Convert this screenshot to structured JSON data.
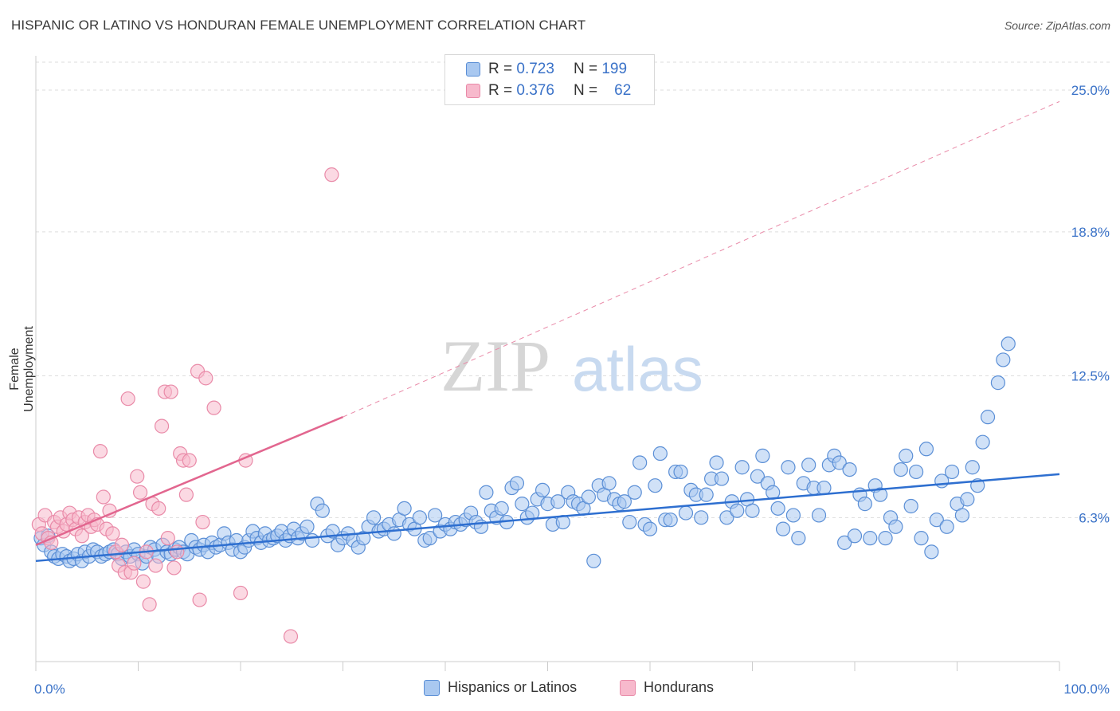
{
  "title": "HISPANIC OR LATINO VS HONDURAN FEMALE UNEMPLOYMENT CORRELATION CHART",
  "source": "Source: ZipAtlas.com",
  "watermark": {
    "zip": "ZIP",
    "atlas": "atlas"
  },
  "legend_top": [
    {
      "r_label": "R =",
      "r_value": "0.723",
      "n_label": "N =",
      "n_value": "199"
    },
    {
      "r_label": "R =",
      "r_value": "0.376",
      "n_label": "N =",
      "n_value": "62"
    }
  ],
  "colors": {
    "blue_fill": "#a9c8f0",
    "blue_stroke": "#5b8fd6",
    "blue_line": "#2e6fd0",
    "pink_fill": "#f7b9cc",
    "pink_stroke": "#e98aa8",
    "pink_line": "#e2668f",
    "grid": "#dddddd",
    "tick_label": "#3a72c8"
  },
  "chart_data": {
    "type": "scatter",
    "title": "HISPANIC OR LATINO VS HONDURAN FEMALE UNEMPLOYMENT CORRELATION CHART",
    "xlabel": "",
    "ylabel": "Female Unemployment",
    "xlim": [
      0,
      100
    ],
    "ylim": [
      0,
      26.5
    ],
    "x_tick_labels": [
      "0.0%",
      "100.0%"
    ],
    "y_ticks": [
      6.3,
      12.5,
      18.8,
      25.0
    ],
    "y_tick_labels": [
      "6.3%",
      "12.5%",
      "18.8%",
      "25.0%"
    ],
    "grid": true,
    "legend_position": "top-center",
    "series": [
      {
        "name": "Hispanics or Latinos",
        "color": "#5b8fd6",
        "trend": {
          "x": [
            0,
            100
          ],
          "y": [
            4.4,
            8.2
          ]
        },
        "points": [
          [
            0.5,
            5.4
          ],
          [
            0.8,
            5.1
          ],
          [
            1.2,
            5.5
          ],
          [
            1.5,
            4.8
          ],
          [
            1.8,
            4.6
          ],
          [
            2.2,
            4.5
          ],
          [
            2.6,
            4.7
          ],
          [
            3.0,
            4.6
          ],
          [
            3.3,
            4.4
          ],
          [
            3.7,
            4.5
          ],
          [
            4.1,
            4.7
          ],
          [
            4.5,
            4.4
          ],
          [
            4.8,
            4.8
          ],
          [
            5.2,
            4.6
          ],
          [
            5.6,
            4.9
          ],
          [
            6.0,
            4.8
          ],
          [
            6.4,
            4.6
          ],
          [
            6.8,
            4.7
          ],
          [
            7.2,
            4.8
          ],
          [
            7.6,
            4.9
          ],
          [
            8.0,
            4.7
          ],
          [
            8.4,
            4.5
          ],
          [
            8.8,
            4.8
          ],
          [
            9.2,
            4.6
          ],
          [
            9.6,
            4.9
          ],
          [
            10.0,
            4.7
          ],
          [
            10.4,
            4.3
          ],
          [
            10.8,
            4.6
          ],
          [
            11.2,
            5.0
          ],
          [
            11.6,
            4.9
          ],
          [
            12.0,
            4.6
          ],
          [
            12.4,
            5.1
          ],
          [
            12.8,
            4.8
          ],
          [
            13.2,
            4.7
          ],
          [
            13.6,
            4.9
          ],
          [
            14.0,
            5.0
          ],
          [
            14.4,
            4.8
          ],
          [
            14.8,
            4.7
          ],
          [
            15.2,
            5.3
          ],
          [
            15.6,
            5.0
          ],
          [
            16.0,
            4.9
          ],
          [
            16.4,
            5.1
          ],
          [
            16.8,
            4.8
          ],
          [
            17.2,
            5.2
          ],
          [
            17.6,
            5.0
          ],
          [
            18.0,
            5.1
          ],
          [
            18.4,
            5.6
          ],
          [
            18.8,
            5.2
          ],
          [
            19.2,
            4.9
          ],
          [
            19.6,
            5.3
          ],
          [
            20.0,
            4.8
          ],
          [
            20.4,
            5.0
          ],
          [
            20.8,
            5.3
          ],
          [
            21.2,
            5.7
          ],
          [
            21.6,
            5.4
          ],
          [
            22.0,
            5.2
          ],
          [
            22.4,
            5.6
          ],
          [
            22.8,
            5.3
          ],
          [
            23.2,
            5.4
          ],
          [
            23.6,
            5.5
          ],
          [
            24.0,
            5.7
          ],
          [
            24.4,
            5.3
          ],
          [
            24.8,
            5.5
          ],
          [
            25.2,
            5.8
          ],
          [
            25.6,
            5.4
          ],
          [
            26.0,
            5.6
          ],
          [
            26.5,
            5.9
          ],
          [
            27.0,
            5.3
          ],
          [
            27.5,
            6.9
          ],
          [
            28.0,
            6.6
          ],
          [
            28.5,
            5.5
          ],
          [
            29.0,
            5.7
          ],
          [
            29.5,
            5.1
          ],
          [
            30.0,
            5.4
          ],
          [
            30.5,
            5.6
          ],
          [
            31.0,
            5.3
          ],
          [
            31.5,
            5.0
          ],
          [
            32.0,
            5.4
          ],
          [
            32.5,
            5.9
          ],
          [
            33.0,
            6.3
          ],
          [
            33.5,
            5.7
          ],
          [
            34.0,
            5.8
          ],
          [
            34.5,
            6.0
          ],
          [
            35.0,
            5.6
          ],
          [
            35.5,
            6.2
          ],
          [
            36.0,
            6.7
          ],
          [
            36.5,
            6.0
          ],
          [
            37.0,
            5.8
          ],
          [
            37.5,
            6.3
          ],
          [
            38.0,
            5.3
          ],
          [
            38.5,
            5.4
          ],
          [
            39.0,
            6.4
          ],
          [
            39.5,
            5.7
          ],
          [
            40.0,
            6.0
          ],
          [
            40.5,
            5.8
          ],
          [
            41.0,
            6.1
          ],
          [
            41.5,
            6.0
          ],
          [
            42.0,
            6.2
          ],
          [
            42.5,
            6.5
          ],
          [
            43.0,
            6.1
          ],
          [
            43.5,
            5.9
          ],
          [
            44.0,
            7.4
          ],
          [
            44.5,
            6.6
          ],
          [
            45.0,
            6.3
          ],
          [
            45.5,
            6.7
          ],
          [
            46.0,
            6.1
          ],
          [
            46.5,
            7.6
          ],
          [
            47.0,
            7.8
          ],
          [
            47.5,
            6.9
          ],
          [
            48.0,
            6.3
          ],
          [
            48.5,
            6.5
          ],
          [
            49.0,
            7.1
          ],
          [
            49.5,
            7.5
          ],
          [
            50.0,
            6.9
          ],
          [
            50.5,
            6.0
          ],
          [
            51.0,
            7.0
          ],
          [
            51.5,
            6.1
          ],
          [
            52.0,
            7.4
          ],
          [
            52.5,
            7.0
          ],
          [
            53.0,
            6.9
          ],
          [
            53.5,
            6.7
          ],
          [
            54.0,
            7.2
          ],
          [
            54.5,
            4.4
          ],
          [
            55.0,
            7.7
          ],
          [
            55.5,
            7.3
          ],
          [
            56.0,
            7.8
          ],
          [
            56.5,
            7.1
          ],
          [
            57.0,
            6.9
          ],
          [
            57.5,
            7.0
          ],
          [
            58.0,
            6.1
          ],
          [
            58.5,
            7.4
          ],
          [
            59.0,
            8.7
          ],
          [
            59.5,
            6.0
          ],
          [
            60.0,
            5.8
          ],
          [
            60.5,
            7.7
          ],
          [
            61.0,
            9.1
          ],
          [
            61.5,
            6.2
          ],
          [
            62.0,
            6.2
          ],
          [
            62.5,
            8.3
          ],
          [
            63.0,
            8.3
          ],
          [
            63.5,
            6.5
          ],
          [
            64.0,
            7.5
          ],
          [
            64.5,
            7.3
          ],
          [
            65.0,
            6.3
          ],
          [
            65.5,
            7.3
          ],
          [
            66.0,
            8.0
          ],
          [
            66.5,
            8.7
          ],
          [
            67.0,
            8.0
          ],
          [
            67.5,
            6.3
          ],
          [
            68.0,
            7.0
          ],
          [
            68.5,
            6.6
          ],
          [
            69.0,
            8.5
          ],
          [
            69.5,
            7.1
          ],
          [
            70.0,
            6.6
          ],
          [
            70.5,
            8.1
          ],
          [
            71.0,
            9.0
          ],
          [
            71.5,
            7.8
          ],
          [
            72.0,
            7.4
          ],
          [
            72.5,
            6.7
          ],
          [
            73.0,
            5.8
          ],
          [
            73.5,
            8.5
          ],
          [
            74.0,
            6.4
          ],
          [
            74.5,
            5.4
          ],
          [
            75.0,
            7.8
          ],
          [
            75.5,
            8.6
          ],
          [
            76.0,
            7.6
          ],
          [
            76.5,
            6.4
          ],
          [
            77.0,
            7.6
          ],
          [
            77.5,
            8.6
          ],
          [
            78.0,
            9.0
          ],
          [
            78.5,
            8.7
          ],
          [
            79.0,
            5.2
          ],
          [
            79.5,
            8.4
          ],
          [
            80.0,
            5.5
          ],
          [
            80.5,
            7.3
          ],
          [
            81.0,
            6.9
          ],
          [
            81.5,
            5.4
          ],
          [
            82.0,
            7.7
          ],
          [
            82.5,
            7.3
          ],
          [
            83.0,
            5.4
          ],
          [
            83.5,
            6.3
          ],
          [
            84.0,
            5.9
          ],
          [
            84.5,
            8.4
          ],
          [
            85.0,
            9.0
          ],
          [
            85.5,
            6.8
          ],
          [
            86.0,
            8.3
          ],
          [
            86.5,
            5.4
          ],
          [
            87.0,
            9.3
          ],
          [
            87.5,
            4.8
          ],
          [
            88.0,
            6.2
          ],
          [
            88.5,
            7.9
          ],
          [
            89.0,
            5.9
          ],
          [
            89.5,
            8.3
          ],
          [
            90.0,
            6.9
          ],
          [
            90.5,
            6.4
          ],
          [
            91.0,
            7.1
          ],
          [
            91.5,
            8.5
          ],
          [
            92.0,
            7.7
          ],
          [
            92.5,
            9.6
          ],
          [
            93.0,
            10.7
          ],
          [
            94.0,
            12.2
          ],
          [
            94.5,
            13.2
          ],
          [
            95.0,
            13.9
          ]
        ]
      },
      {
        "name": "Hondurans",
        "color": "#e98aa8",
        "trend": {
          "x": [
            0,
            30
          ],
          "y": [
            5.1,
            10.7
          ],
          "extended_to": [
            100,
            24.5
          ]
        },
        "points": [
          [
            0.3,
            6.0
          ],
          [
            0.6,
            5.6
          ],
          [
            0.9,
            6.4
          ],
          [
            1.2,
            5.4
          ],
          [
            1.5,
            5.2
          ],
          [
            1.8,
            6.1
          ],
          [
            2.1,
            5.9
          ],
          [
            2.4,
            6.3
          ],
          [
            2.7,
            5.7
          ],
          [
            3.0,
            6.0
          ],
          [
            3.3,
            6.5
          ],
          [
            3.6,
            6.2
          ],
          [
            3.9,
            5.8
          ],
          [
            4.2,
            6.3
          ],
          [
            4.5,
            5.5
          ],
          [
            4.8,
            6.1
          ],
          [
            5.1,
            6.4
          ],
          [
            5.4,
            5.9
          ],
          [
            5.7,
            6.2
          ],
          [
            6.0,
            6.0
          ],
          [
            6.3,
            9.2
          ],
          [
            6.6,
            7.2
          ],
          [
            6.9,
            5.8
          ],
          [
            7.2,
            6.6
          ],
          [
            7.5,
            5.6
          ],
          [
            7.8,
            4.8
          ],
          [
            8.1,
            4.2
          ],
          [
            8.4,
            5.1
          ],
          [
            8.7,
            3.9
          ],
          [
            9.0,
            11.5
          ],
          [
            9.3,
            3.9
          ],
          [
            9.6,
            4.3
          ],
          [
            9.9,
            8.1
          ],
          [
            10.2,
            7.4
          ],
          [
            10.5,
            3.5
          ],
          [
            10.8,
            4.8
          ],
          [
            11.1,
            2.5
          ],
          [
            11.4,
            6.9
          ],
          [
            11.7,
            4.2
          ],
          [
            12.0,
            6.7
          ],
          [
            12.3,
            10.3
          ],
          [
            12.6,
            11.8
          ],
          [
            12.9,
            5.4
          ],
          [
            13.2,
            11.8
          ],
          [
            13.5,
            4.1
          ],
          [
            13.8,
            4.8
          ],
          [
            14.1,
            9.1
          ],
          [
            14.4,
            8.8
          ],
          [
            14.7,
            7.3
          ],
          [
            15.0,
            8.8
          ],
          [
            16.3,
            6.1
          ],
          [
            16.0,
            2.7
          ],
          [
            15.8,
            12.7
          ],
          [
            16.6,
            12.4
          ],
          [
            17.4,
            11.1
          ],
          [
            20.0,
            3.0
          ],
          [
            20.5,
            8.8
          ],
          [
            24.9,
            1.1
          ],
          [
            28.9,
            21.3
          ]
        ]
      }
    ]
  },
  "legend_bottom": [
    "Hispanics or Latinos",
    "Hondurans"
  ]
}
